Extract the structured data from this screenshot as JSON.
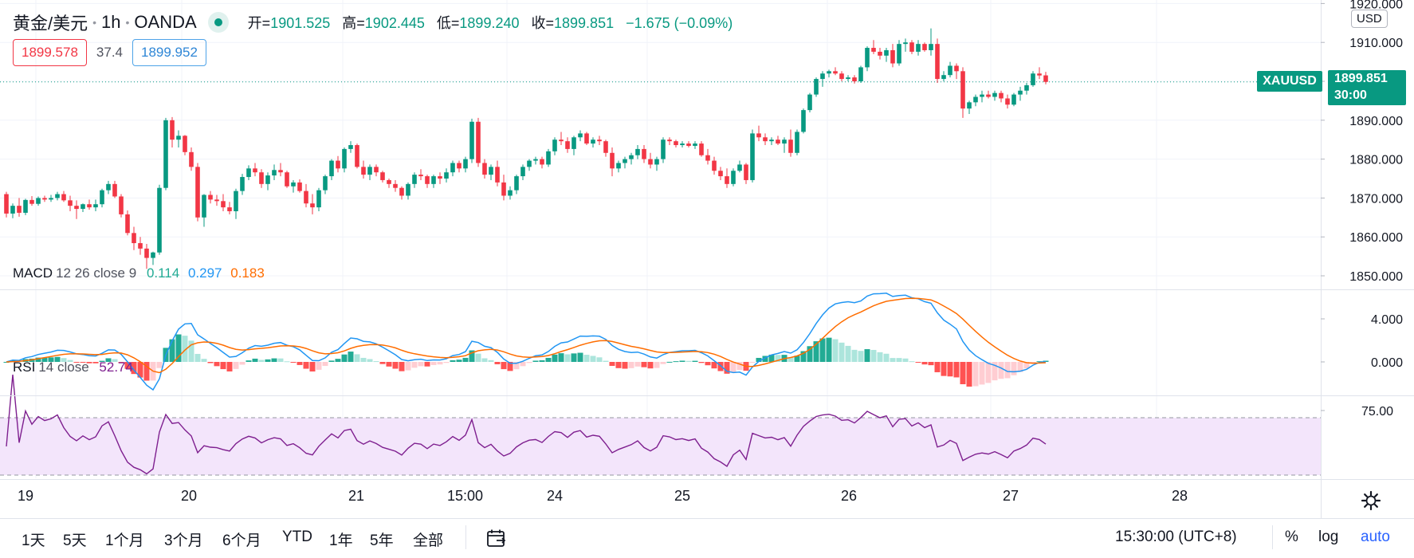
{
  "header": {
    "symbol": "黄金/美元",
    "interval": "1h",
    "exchange": "OANDA",
    "ohlc": {
      "open_label": "开",
      "open": "1901.525",
      "high_label": "高",
      "high": "1902.445",
      "low_label": "低",
      "low": "1899.240",
      "close_label": "收",
      "close": "1899.851",
      "change": "−1.675 (−0.09%)"
    },
    "bid": "1899.578",
    "spread": "37.4",
    "ask": "1899.952"
  },
  "currency_badge": "USD",
  "price_tag": {
    "symbol": "XAUUSD",
    "price": "1899.851",
    "countdown": "30:00"
  },
  "macd_legend": {
    "name": "MACD",
    "params": "12 26 close 9",
    "hist": "0.114",
    "macd": "0.297",
    "signal": "0.183"
  },
  "rsi_legend": {
    "name": "RSI",
    "params": "14 close",
    "value": "52.74"
  },
  "time_axis_labels": [
    "19",
    "20",
    "21",
    "15:00",
    "24",
    "25",
    "26",
    "27",
    "28"
  ],
  "range_buttons": [
    "1天",
    "5天",
    "1个月",
    "3个月",
    "6个月",
    "YTD",
    "1年",
    "5年",
    "全部"
  ],
  "bottom_right": {
    "clock": "15:30:00 (UTC+8)",
    "percent": "%",
    "log": "log",
    "auto": "auto"
  },
  "colors": {
    "up": "#089981",
    "down": "#f23645",
    "macd_line": "#2196f3",
    "signal_line": "#ff6d00",
    "rsi_line": "#7e1f8f",
    "rsi_band": "#f3e5fb",
    "hist_up_strong": "#22ab94",
    "hist_up_weak": "#ace5dc",
    "hist_down_strong": "#ff5252",
    "hist_down_weak": "#ffcdd2"
  },
  "chart_data": [
    {
      "type": "candlestick",
      "title": "黄金/美元 · 1h · OANDA",
      "y_ticks": [
        "1850.000",
        "1860.000",
        "1870.000",
        "1880.000",
        "1890.000",
        "1900.000",
        "1910.000",
        "1920.000"
      ],
      "ylim": [
        1846,
        1920.4
      ],
      "last_price": 1899.851,
      "x_labels": [
        "19",
        "20",
        "21",
        "15:00",
        "24",
        "25",
        "26",
        "27",
        "28"
      ],
      "ohlc": [
        [
          1871.0,
          1871.6,
          1865.0,
          1866.0
        ],
        [
          1866.0,
          1868.6,
          1864.8,
          1868.0
        ],
        [
          1868.0,
          1870.0,
          1865.2,
          1866.2
        ],
        [
          1866.2,
          1869.8,
          1865.6,
          1869.5
        ],
        [
          1869.5,
          1870.5,
          1868.0,
          1868.5
        ],
        [
          1868.5,
          1870.4,
          1868.0,
          1870.0
        ],
        [
          1870.0,
          1870.6,
          1869.0,
          1869.6
        ],
        [
          1869.6,
          1870.8,
          1869.0,
          1870.0
        ],
        [
          1870.0,
          1871.6,
          1869.4,
          1871.0
        ],
        [
          1871.0,
          1871.8,
          1869.0,
          1869.4
        ],
        [
          1869.4,
          1870.6,
          1866.6,
          1868.0
        ],
        [
          1868.0,
          1869.4,
          1864.6,
          1867.2
        ],
        [
          1867.2,
          1868.6,
          1866.4,
          1868.4
        ],
        [
          1868.4,
          1869.6,
          1867.0,
          1867.6
        ],
        [
          1867.6,
          1869.6,
          1866.6,
          1868.4
        ],
        [
          1868.4,
          1872.4,
          1867.6,
          1872.0
        ],
        [
          1872.0,
          1874.4,
          1871.0,
          1873.6
        ],
        [
          1873.6,
          1874.4,
          1870.0,
          1870.4
        ],
        [
          1870.4,
          1871.0,
          1865.0,
          1865.8
        ],
        [
          1865.8,
          1866.8,
          1860.4,
          1861.0
        ],
        [
          1861.0,
          1862.6,
          1856.6,
          1858.4
        ],
        [
          1858.4,
          1860.0,
          1855.4,
          1857.0
        ],
        [
          1857.0,
          1858.2,
          1851.8,
          1854.6
        ],
        [
          1854.6,
          1856.2,
          1852.8,
          1856.0
        ],
        [
          1856.0,
          1873.4,
          1855.4,
          1872.6
        ],
        [
          1872.6,
          1890.6,
          1872.0,
          1890.0
        ],
        [
          1890.0,
          1890.8,
          1883.0,
          1885.0
        ],
        [
          1885.0,
          1887.4,
          1883.0,
          1886.0
        ],
        [
          1886.0,
          1886.2,
          1881.0,
          1881.8
        ],
        [
          1881.8,
          1883.0,
          1877.0,
          1878.0
        ],
        [
          1878.0,
          1879.0,
          1864.0,
          1865.0
        ],
        [
          1865.0,
          1871.0,
          1862.6,
          1870.8
        ],
        [
          1870.8,
          1871.8,
          1868.6,
          1869.6
        ],
        [
          1869.6,
          1870.8,
          1868.0,
          1869.2
        ],
        [
          1869.2,
          1871.0,
          1866.6,
          1867.6
        ],
        [
          1867.6,
          1869.0,
          1865.8,
          1866.6
        ],
        [
          1866.6,
          1872.4,
          1864.6,
          1871.8
        ],
        [
          1871.8,
          1876.2,
          1870.8,
          1875.4
        ],
        [
          1875.4,
          1878.4,
          1874.6,
          1877.6
        ],
        [
          1877.6,
          1879.0,
          1875.6,
          1876.6
        ],
        [
          1876.6,
          1877.4,
          1872.6,
          1873.6
        ],
        [
          1873.6,
          1876.6,
          1872.0,
          1875.8
        ],
        [
          1875.8,
          1878.6,
          1874.6,
          1877.2
        ],
        [
          1877.2,
          1879.0,
          1875.6,
          1876.6
        ],
        [
          1876.6,
          1877.0,
          1872.6,
          1873.0
        ],
        [
          1873.0,
          1874.6,
          1871.4,
          1874.0
        ],
        [
          1874.0,
          1874.8,
          1871.4,
          1871.8
        ],
        [
          1871.8,
          1873.6,
          1867.6,
          1868.6
        ],
        [
          1868.6,
          1871.0,
          1865.8,
          1867.6
        ],
        [
          1867.6,
          1872.6,
          1866.6,
          1872.0
        ],
        [
          1872.0,
          1876.0,
          1871.0,
          1875.6
        ],
        [
          1875.6,
          1880.0,
          1874.6,
          1879.6
        ],
        [
          1879.6,
          1880.8,
          1876.6,
          1877.6
        ],
        [
          1877.6,
          1883.0,
          1876.6,
          1882.6
        ],
        [
          1882.6,
          1884.6,
          1881.6,
          1883.6
        ],
        [
          1883.6,
          1884.0,
          1877.6,
          1878.0
        ],
        [
          1878.0,
          1879.6,
          1875.0,
          1876.0
        ],
        [
          1876.0,
          1878.6,
          1874.6,
          1878.0
        ],
        [
          1878.0,
          1878.6,
          1875.6,
          1876.6
        ],
        [
          1876.6,
          1877.0,
          1874.0,
          1874.6
        ],
        [
          1874.6,
          1875.0,
          1872.6,
          1873.6
        ],
        [
          1873.6,
          1874.6,
          1871.6,
          1872.6
        ],
        [
          1872.6,
          1873.0,
          1869.6,
          1870.6
        ],
        [
          1870.6,
          1874.0,
          1869.6,
          1873.6
        ],
        [
          1873.6,
          1876.6,
          1872.6,
          1876.0
        ],
        [
          1876.0,
          1877.4,
          1874.6,
          1875.6
        ],
        [
          1875.6,
          1876.0,
          1872.6,
          1873.6
        ],
        [
          1873.6,
          1876.0,
          1872.6,
          1875.6
        ],
        [
          1875.6,
          1876.6,
          1873.6,
          1875.0
        ],
        [
          1875.0,
          1877.6,
          1874.0,
          1876.6
        ],
        [
          1876.6,
          1879.6,
          1875.6,
          1879.0
        ],
        [
          1879.0,
          1879.6,
          1876.6,
          1877.6
        ],
        [
          1877.6,
          1880.6,
          1876.6,
          1880.0
        ],
        [
          1880.0,
          1890.4,
          1879.0,
          1889.6
        ],
        [
          1889.6,
          1890.6,
          1878.0,
          1879.0
        ],
        [
          1879.0,
          1880.0,
          1875.0,
          1876.0
        ],
        [
          1876.0,
          1878.6,
          1874.6,
          1878.0
        ],
        [
          1878.0,
          1879.6,
          1873.0,
          1874.0
        ],
        [
          1874.0,
          1876.0,
          1869.4,
          1870.6
        ],
        [
          1870.6,
          1873.0,
          1869.6,
          1872.0
        ],
        [
          1872.0,
          1876.0,
          1871.0,
          1875.6
        ],
        [
          1875.6,
          1878.6,
          1874.6,
          1878.0
        ],
        [
          1878.0,
          1880.0,
          1877.0,
          1879.6
        ],
        [
          1879.6,
          1880.6,
          1878.6,
          1880.0
        ],
        [
          1880.0,
          1880.6,
          1877.6,
          1878.6
        ],
        [
          1878.6,
          1882.6,
          1878.0,
          1882.0
        ],
        [
          1882.0,
          1885.6,
          1881.0,
          1885.0
        ],
        [
          1885.0,
          1887.0,
          1883.6,
          1884.6
        ],
        [
          1884.6,
          1885.6,
          1881.6,
          1882.6
        ],
        [
          1882.6,
          1886.0,
          1881.0,
          1885.6
        ],
        [
          1885.6,
          1887.4,
          1884.6,
          1886.6
        ],
        [
          1886.6,
          1887.0,
          1883.6,
          1884.0
        ],
        [
          1884.0,
          1885.6,
          1883.0,
          1885.0
        ],
        [
          1885.0,
          1886.0,
          1883.6,
          1884.6
        ],
        [
          1884.6,
          1885.0,
          1880.6,
          1881.6
        ],
        [
          1881.6,
          1883.0,
          1875.6,
          1877.6
        ],
        [
          1877.6,
          1879.6,
          1876.6,
          1879.0
        ],
        [
          1879.0,
          1880.6,
          1877.6,
          1880.0
        ],
        [
          1880.0,
          1881.6,
          1878.6,
          1881.0
        ],
        [
          1881.0,
          1883.6,
          1880.0,
          1882.6
        ],
        [
          1882.6,
          1883.6,
          1879.0,
          1880.0
        ],
        [
          1880.0,
          1881.6,
          1877.6,
          1878.6
        ],
        [
          1878.6,
          1880.6,
          1877.0,
          1880.0
        ],
        [
          1880.0,
          1885.6,
          1879.0,
          1885.0
        ],
        [
          1885.0,
          1885.6,
          1883.6,
          1884.6
        ],
        [
          1884.6,
          1885.0,
          1883.0,
          1883.6
        ],
        [
          1883.6,
          1884.6,
          1883.0,
          1884.0
        ],
        [
          1884.0,
          1884.6,
          1883.0,
          1883.4
        ],
        [
          1883.4,
          1884.6,
          1882.6,
          1884.0
        ],
        [
          1884.0,
          1884.6,
          1880.6,
          1881.0
        ],
        [
          1881.0,
          1882.6,
          1878.6,
          1879.6
        ],
        [
          1879.6,
          1880.6,
          1876.0,
          1877.0
        ],
        [
          1877.0,
          1878.0,
          1874.6,
          1875.6
        ],
        [
          1875.6,
          1877.6,
          1872.6,
          1873.6
        ],
        [
          1873.6,
          1877.6,
          1873.0,
          1877.0
        ],
        [
          1877.0,
          1879.6,
          1876.6,
          1878.6
        ],
        [
          1878.6,
          1879.0,
          1873.6,
          1874.6
        ],
        [
          1874.6,
          1887.6,
          1874.0,
          1886.6
        ],
        [
          1886.6,
          1888.6,
          1884.6,
          1885.6
        ],
        [
          1885.6,
          1886.6,
          1883.6,
          1884.6
        ],
        [
          1884.6,
          1885.6,
          1883.6,
          1885.0
        ],
        [
          1885.0,
          1886.0,
          1883.6,
          1884.0
        ],
        [
          1884.0,
          1885.6,
          1881.6,
          1885.0
        ],
        [
          1885.0,
          1887.6,
          1880.6,
          1881.6
        ],
        [
          1881.6,
          1887.6,
          1881.0,
          1887.0
        ],
        [
          1887.0,
          1893.0,
          1886.6,
          1892.6
        ],
        [
          1892.6,
          1897.0,
          1892.0,
          1896.6
        ],
        [
          1896.6,
          1901.0,
          1896.0,
          1900.6
        ],
        [
          1900.6,
          1902.6,
          1898.6,
          1902.0
        ],
        [
          1902.0,
          1903.0,
          1901.0,
          1902.6
        ],
        [
          1902.6,
          1903.6,
          1901.6,
          1902.0
        ],
        [
          1902.0,
          1902.6,
          1900.0,
          1900.6
        ],
        [
          1900.6,
          1901.6,
          1900.0,
          1901.0
        ],
        [
          1901.0,
          1901.6,
          1899.4,
          1900.0
        ],
        [
          1900.0,
          1904.0,
          1899.6,
          1903.6
        ],
        [
          1903.6,
          1909.0,
          1902.6,
          1908.6
        ],
        [
          1908.6,
          1910.6,
          1907.0,
          1907.6
        ],
        [
          1907.6,
          1908.6,
          1905.6,
          1906.6
        ],
        [
          1906.6,
          1908.6,
          1905.0,
          1908.0
        ],
        [
          1908.0,
          1909.6,
          1903.6,
          1904.6
        ],
        [
          1904.6,
          1910.6,
          1904.0,
          1909.6
        ],
        [
          1909.6,
          1911.0,
          1907.6,
          1910.0
        ],
        [
          1910.0,
          1910.6,
          1907.0,
          1907.6
        ],
        [
          1907.6,
          1910.6,
          1906.6,
          1909.6
        ],
        [
          1909.6,
          1910.0,
          1907.6,
          1908.0
        ],
        [
          1908.0,
          1913.6,
          1906.6,
          1909.6
        ],
        [
          1909.6,
          1911.0,
          1899.6,
          1900.6
        ],
        [
          1900.6,
          1902.6,
          1900.0,
          1901.6
        ],
        [
          1901.6,
          1905.0,
          1901.0,
          1904.0
        ],
        [
          1904.0,
          1904.6,
          1900.6,
          1902.6
        ],
        [
          1902.6,
          1903.6,
          1890.6,
          1893.0
        ],
        [
          1893.0,
          1895.0,
          1891.6,
          1894.6
        ],
        [
          1894.6,
          1896.6,
          1893.6,
          1896.0
        ],
        [
          1896.0,
          1897.6,
          1894.6,
          1896.6
        ],
        [
          1896.6,
          1897.6,
          1895.6,
          1896.0
        ],
        [
          1896.0,
          1897.6,
          1895.0,
          1897.0
        ],
        [
          1897.0,
          1897.6,
          1894.6,
          1895.6
        ],
        [
          1895.6,
          1896.6,
          1893.0,
          1894.0
        ],
        [
          1894.0,
          1897.0,
          1893.6,
          1896.6
        ],
        [
          1896.6,
          1898.6,
          1895.0,
          1897.6
        ],
        [
          1897.6,
          1899.6,
          1896.6,
          1899.0
        ],
        [
          1899.0,
          1902.6,
          1898.6,
          1902.0
        ],
        [
          1902.0,
          1903.6,
          1900.6,
          1901.5
        ],
        [
          1901.525,
          1902.445,
          1899.24,
          1899.851
        ]
      ]
    },
    {
      "type": "line",
      "title": "MACD 12 26 close 9",
      "y_ticks": [
        "0.000",
        "4.000"
      ],
      "ylim": [
        -2.0,
        6.0
      ],
      "series_names": [
        "MACD",
        "Signal"
      ],
      "histogram_last": 0.114,
      "macd_last": 0.297,
      "signal_last": 0.183
    },
    {
      "type": "line",
      "title": "RSI 14 close",
      "y_ticks": [
        "75.00"
      ],
      "ylim": [
        20,
        82
      ],
      "band": [
        30,
        70
      ],
      "last_value": 52.74
    }
  ]
}
